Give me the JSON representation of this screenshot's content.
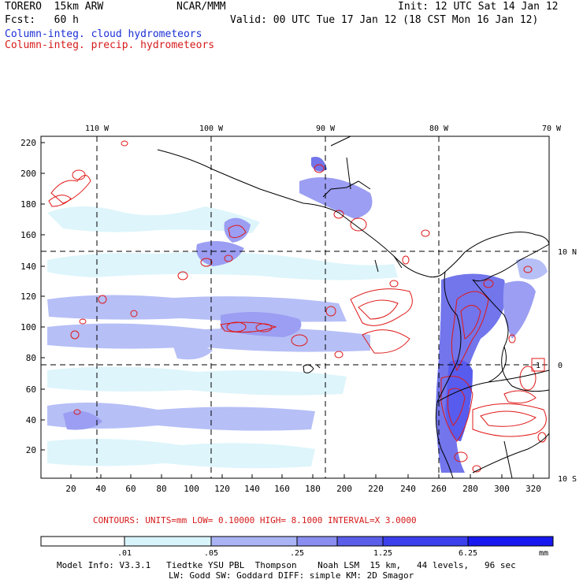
{
  "header": {
    "model": "TORERO  15km ARW",
    "org": "NCAR/MMM",
    "init": "Init: 12 UTC Sat 14 Jan 12",
    "fcst": "Fcst:   60 h",
    "valid": "Valid: 00 UTC Tue 17 Jan 12 (18 CST Mon 16 Jan 12)",
    "field_cloud": "Column-integ. cloud hydrometeors",
    "field_precip": "Column-integ. precip. hydrometeors"
  },
  "map": {
    "lon_labels": [
      "110 W",
      "100 W",
      "90 W",
      "80 W",
      "70 W"
    ],
    "lat_labels": [
      "10 N",
      "0",
      "10 S"
    ],
    "x_ticks": [
      "20",
      "40",
      "60",
      "80",
      "100",
      "120",
      "140",
      "160",
      "180",
      "200",
      "220",
      "240",
      "260",
      "280",
      "300",
      "320"
    ],
    "y_ticks": [
      "20",
      "40",
      "60",
      "80",
      "100",
      "120",
      "140",
      "160",
      "180",
      "200",
      "220"
    ],
    "box_label": "1",
    "colors": {
      "land": "#000000",
      "cloud": "#5a5af0",
      "precip": "#e01818",
      "grid": "#000000"
    }
  },
  "contours": {
    "text": "CONTOURS:  UNITS=mm  LOW= 0.10000      HIGH=  8.1000      INTERVAL=X  3.0000"
  },
  "colorbar": {
    "ticks": [
      ".01",
      ".05",
      ".25",
      "1.25",
      "6.25"
    ],
    "unit": "mm",
    "colors": [
      "#ffffff",
      "#d8f4fb",
      "#aab4f5",
      "#8a8ef0",
      "#5a5ee8",
      "#3c40ec",
      "#1818f0"
    ]
  },
  "footer": {
    "line1": "Model Info: V3.3.1   Tiedtke YSU PBL  Thompson    Noah LSM  15 km,   44 levels,   96 sec",
    "line2": "LW: Godd SW: Goddard DIFF: simple KM: 2D Smagor"
  }
}
